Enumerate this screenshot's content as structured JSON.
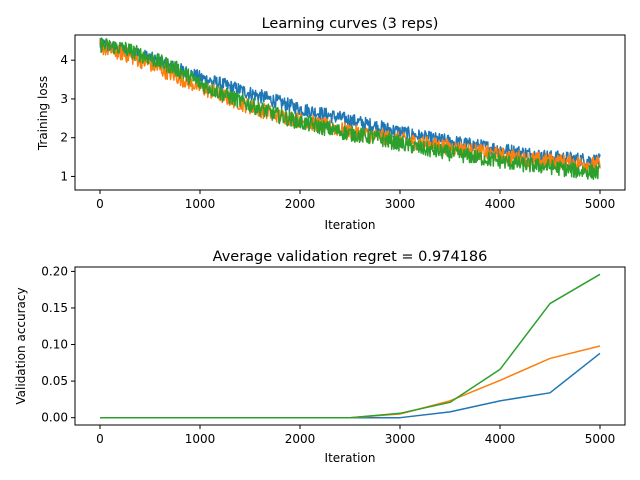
{
  "chart_data": [
    {
      "type": "line",
      "title": "Learning curves (3 reps)",
      "xlabel": "Iteration",
      "ylabel": "Training loss",
      "xlim": [
        -250,
        5250
      ],
      "ylim": [
        0.65,
        4.65
      ],
      "xticks": [
        0,
        1000,
        2000,
        3000,
        4000,
        5000
      ],
      "yticks": [
        1,
        2,
        3,
        4
      ],
      "x": [
        0,
        250,
        500,
        750,
        1000,
        1250,
        1500,
        1750,
        2000,
        2250,
        2500,
        2750,
        3000,
        3250,
        3500,
        3750,
        4000,
        4250,
        4500,
        4750,
        5000
      ],
      "series": [
        {
          "color": "#1f77b4",
          "noise": 0.18,
          "values": [
            4.4,
            4.25,
            4.05,
            3.8,
            3.55,
            3.35,
            3.15,
            2.95,
            2.75,
            2.6,
            2.45,
            2.3,
            2.15,
            2.0,
            1.9,
            1.8,
            1.7,
            1.6,
            1.5,
            1.45,
            1.4
          ]
        },
        {
          "color": "#ff7f0e",
          "noise": 0.2,
          "values": [
            4.35,
            4.15,
            3.9,
            3.6,
            3.3,
            3.05,
            2.8,
            2.6,
            2.45,
            2.3,
            2.15,
            2.05,
            1.95,
            1.85,
            1.75,
            1.65,
            1.55,
            1.45,
            1.4,
            1.35,
            1.3
          ]
        },
        {
          "color": "#2ca02c",
          "noise": 0.2,
          "values": [
            4.4,
            4.3,
            4.05,
            3.8,
            3.4,
            3.1,
            2.85,
            2.6,
            2.4,
            2.25,
            2.1,
            2.0,
            1.85,
            1.7,
            1.6,
            1.5,
            1.4,
            1.3,
            1.25,
            1.15,
            1.1
          ]
        }
      ]
    },
    {
      "type": "line",
      "title": "Average validation regret = 0.974186",
      "xlabel": "Iteration",
      "ylabel": "Validation accuracy",
      "xlim": [
        -250,
        5250
      ],
      "ylim": [
        -0.01,
        0.206
      ],
      "xticks": [
        0,
        1000,
        2000,
        3000,
        4000,
        5000
      ],
      "yticks": [
        0.0,
        0.05,
        0.1,
        0.15,
        0.2
      ],
      "ytick_labels": [
        "0.00",
        "0.05",
        "0.10",
        "0.15",
        "0.20"
      ],
      "x": [
        0,
        500,
        1000,
        1500,
        2000,
        2500,
        3000,
        3500,
        4000,
        4500,
        5000
      ],
      "series": [
        {
          "color": "#1f77b4",
          "values": [
            0,
            0,
            0,
            0,
            0,
            0,
            0.0,
            0.008,
            0.023,
            0.034,
            0.088
          ]
        },
        {
          "color": "#ff7f0e",
          "values": [
            0,
            0,
            0,
            0,
            0,
            0,
            0.005,
            0.023,
            0.051,
            0.081,
            0.098
          ]
        },
        {
          "color": "#2ca02c",
          "values": [
            0,
            0,
            0,
            0,
            0,
            0,
            0.006,
            0.021,
            0.066,
            0.156,
            0.196
          ]
        }
      ]
    }
  ]
}
